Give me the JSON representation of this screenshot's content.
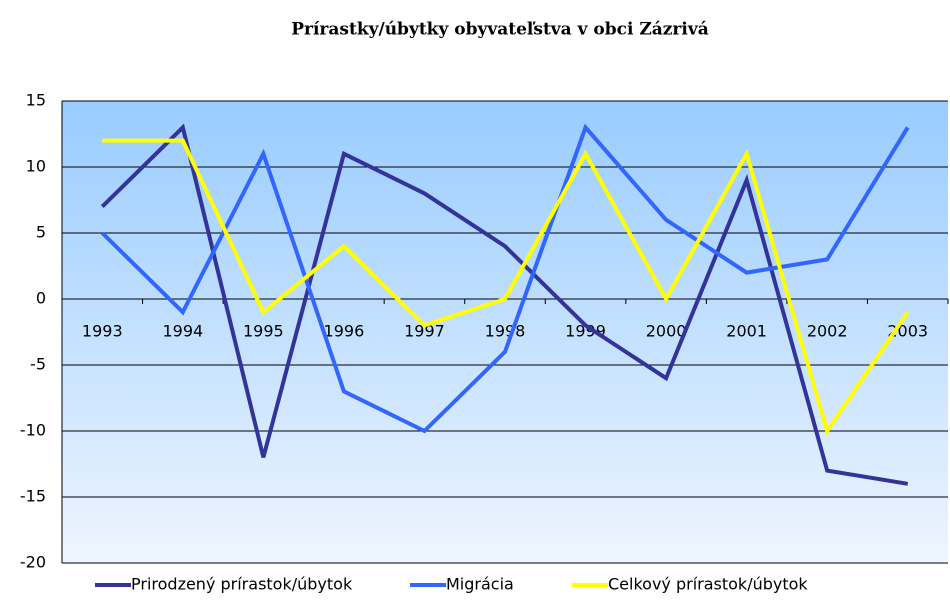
{
  "chart_data": {
    "type": "line",
    "title": "Prírastky/úbytky obyvateľstva v obci Zázrivá",
    "categories": [
      "1993",
      "1994",
      "1995",
      "1996",
      "1997",
      "1998",
      "1999",
      "2000",
      "2001",
      "2002",
      "2003"
    ],
    "series": [
      {
        "name": "Prirodzený prírastok/úbytok",
        "color": "#333399",
        "values": [
          7,
          13,
          -12,
          11,
          8,
          4,
          -2,
          -6,
          9,
          -13,
          -14
        ]
      },
      {
        "name": "Migrácia",
        "color": "#3366ff",
        "values": [
          5,
          -1,
          11,
          -7,
          -10,
          -4,
          13,
          6,
          2,
          3,
          13
        ]
      },
      {
        "name": "Celkový prírastok/úbytok",
        "color": "#ffff00",
        "values": [
          12,
          12,
          -1,
          4,
          -2,
          0,
          11,
          0,
          11,
          -10,
          -1
        ]
      }
    ],
    "ylim": [
      -20,
      15
    ],
    "yticks": [
      -20,
      -15,
      -10,
      -5,
      0,
      5,
      10,
      15
    ],
    "grid": true,
    "legend": "bottom"
  }
}
